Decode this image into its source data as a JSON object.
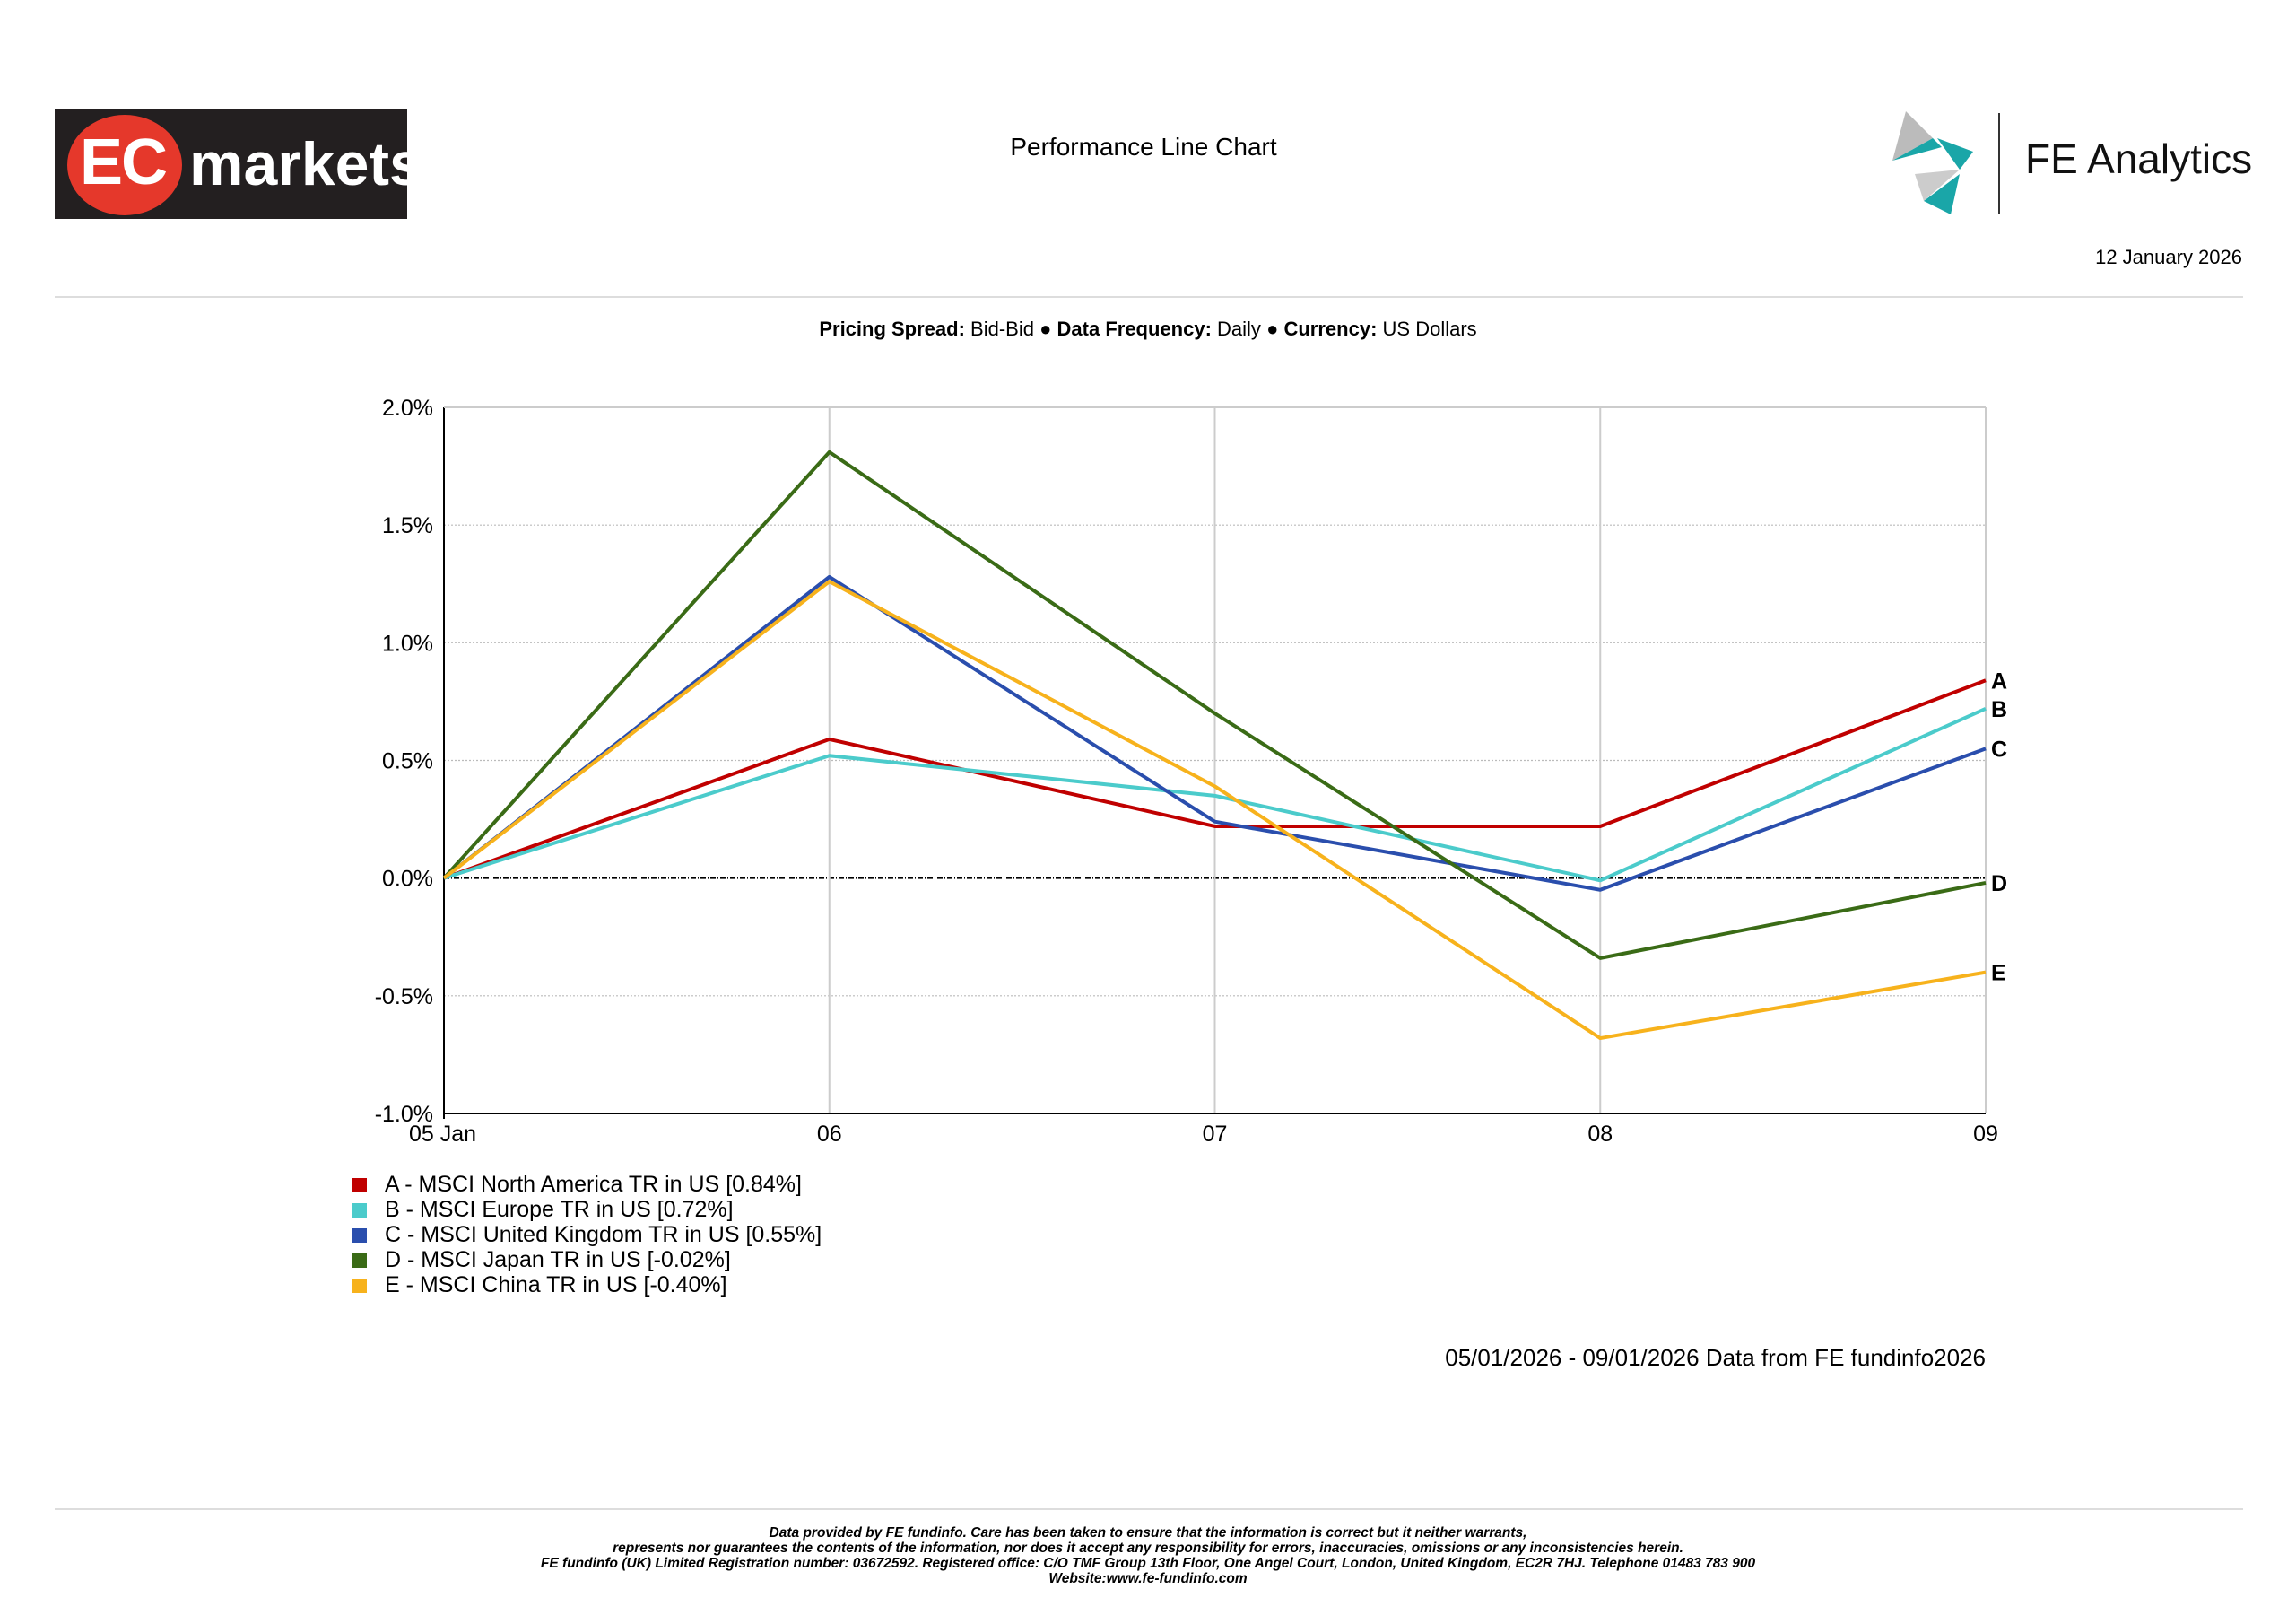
{
  "header": {
    "logo_text": "EC markets",
    "title": "Performance Line Chart",
    "brand": "FE Analytics",
    "date": "12 January 2026"
  },
  "subtitle": {
    "pricing_label": "Pricing Spread:",
    "pricing_value": "Bid-Bid",
    "freq_label": "Data Frequency:",
    "freq_value": "Daily",
    "currency_label": "Currency:",
    "currency_value": "US Dollars",
    "bullet": "●"
  },
  "chart_data": {
    "type": "line",
    "title": "Performance Line Chart",
    "x": [
      "05 Jan",
      "06",
      "07",
      "08",
      "09"
    ],
    "ylim": [
      -1.0,
      2.0
    ],
    "yticks": [
      "2.0%",
      "1.5%",
      "1.0%",
      "0.5%",
      "0.0%",
      "-0.5%",
      "-1.0%"
    ],
    "ytick_values": [
      2.0,
      1.5,
      1.0,
      0.5,
      0.0,
      -0.5,
      -1.0
    ],
    "grid": true,
    "legend_position": "bottom-left",
    "series": [
      {
        "key": "A",
        "name": "A - MSCI North America TR in US [0.84%]",
        "color": "#c00000",
        "values": [
          0,
          0.59,
          0.22,
          0.22,
          0.84
        ]
      },
      {
        "key": "B",
        "name": "B - MSCI Europe TR in US [0.72%]",
        "color": "#4bcbcb",
        "values": [
          0,
          0.52,
          0.35,
          -0.01,
          0.72
        ]
      },
      {
        "key": "C",
        "name": "C - MSCI United Kingdom TR in US [0.55%]",
        "color": "#2a4ead",
        "values": [
          0,
          1.28,
          0.24,
          -0.05,
          0.55
        ]
      },
      {
        "key": "D",
        "name": "D - MSCI Japan TR in US [-0.02%]",
        "color": "#3a6b16",
        "values": [
          0,
          1.81,
          0.7,
          -0.34,
          -0.02
        ]
      },
      {
        "key": "E",
        "name": "E - MSCI China TR in US [-0.40%]",
        "color": "#f7b21c",
        "values": [
          0,
          1.26,
          0.39,
          -0.68,
          -0.4
        ]
      }
    ]
  },
  "range_text": "05/01/2026 - 09/01/2026 Data from FE fundinfo2026",
  "footer": {
    "line1": "Data provided by FE fundinfo. Care has been taken to ensure that the information is correct but it neither warrants,",
    "line2": "represents nor guarantees the contents of the information, nor does it accept any responsibility for errors, inaccuracies, omissions or any inconsistencies herein.",
    "line3": "FE fundinfo (UK) Limited Registration number: 03672592. Registered office: C/O TMF Group 13th Floor, One Angel Court, London, United Kingdom, EC2R 7HJ. Telephone 01483 783 900",
    "line4": "Website:www.fe-fundinfo.com"
  }
}
